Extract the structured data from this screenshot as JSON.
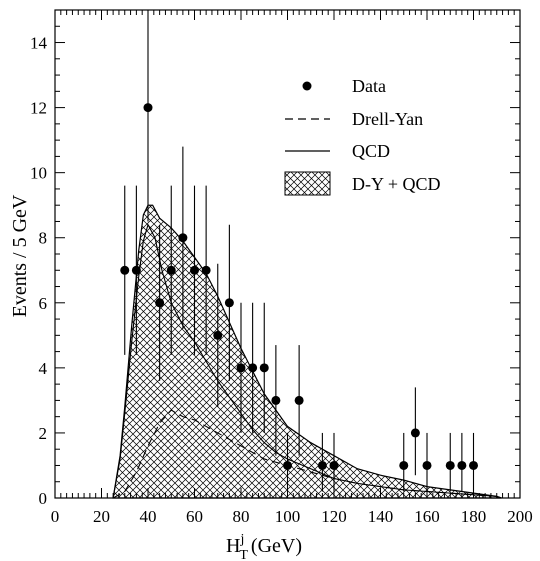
{
  "chart_data": {
    "type": "line",
    "xlabel": {
      "main": "H",
      "sup": "j",
      "sub": "T",
      "unit": "(GeV)"
    },
    "ylabel": "Events / 5 GeV",
    "xlim": [
      0,
      200
    ],
    "ylim": [
      0,
      15
    ],
    "x_ticks": [
      0,
      20,
      40,
      60,
      80,
      100,
      120,
      140,
      160,
      180,
      200
    ],
    "y_ticks": [
      0,
      2,
      4,
      6,
      8,
      10,
      12,
      14
    ],
    "x_minor_step": 2.5,
    "y_minor_step": 0.5,
    "legend": {
      "placement": "top-right",
      "entries": [
        "Data",
        "Drell-Yan",
        "QCD",
        "D-Y + QCD"
      ]
    },
    "series": [
      {
        "name": "Data",
        "kind": "points-with-errors",
        "points": [
          {
            "x": 30,
            "y": 7,
            "lo": 4.4,
            "hi": 9.6
          },
          {
            "x": 35,
            "y": 7,
            "lo": 4.4,
            "hi": 9.6
          },
          {
            "x": 40,
            "y": 12,
            "lo": 8.5,
            "hi": 15.5
          },
          {
            "x": 45,
            "y": 6,
            "lo": 3.6,
            "hi": 8.4
          },
          {
            "x": 50,
            "y": 7,
            "lo": 4.4,
            "hi": 9.6
          },
          {
            "x": 55,
            "y": 8,
            "lo": 5.2,
            "hi": 10.8
          },
          {
            "x": 60,
            "y": 7,
            "lo": 4.4,
            "hi": 9.6
          },
          {
            "x": 65,
            "y": 7,
            "lo": 4.4,
            "hi": 9.6
          },
          {
            "x": 70,
            "y": 5,
            "lo": 2.8,
            "hi": 7.2
          },
          {
            "x": 75,
            "y": 6,
            "lo": 3.6,
            "hi": 8.4
          },
          {
            "x": 80,
            "y": 4,
            "lo": 2.0,
            "hi": 6.0
          },
          {
            "x": 85,
            "y": 4,
            "lo": 2.0,
            "hi": 6.0
          },
          {
            "x": 90,
            "y": 4,
            "lo": 2.0,
            "hi": 6.0
          },
          {
            "x": 95,
            "y": 3,
            "lo": 1.3,
            "hi": 4.7
          },
          {
            "x": 100,
            "y": 1,
            "lo": 0.2,
            "hi": 2.0
          },
          {
            "x": 105,
            "y": 3,
            "lo": 1.3,
            "hi": 4.7
          },
          {
            "x": 115,
            "y": 1,
            "lo": 0.2,
            "hi": 2.0
          },
          {
            "x": 120,
            "y": 1,
            "lo": 0.2,
            "hi": 2.0
          },
          {
            "x": 150,
            "y": 1,
            "lo": 0.2,
            "hi": 2.0
          },
          {
            "x": 155,
            "y": 2,
            "lo": 0.7,
            "hi": 3.4
          },
          {
            "x": 160,
            "y": 1,
            "lo": 0.2,
            "hi": 2.0
          },
          {
            "x": 170,
            "y": 1,
            "lo": 0.2,
            "hi": 2.0
          },
          {
            "x": 175,
            "y": 1,
            "lo": 0.2,
            "hi": 2.0
          },
          {
            "x": 180,
            "y": 1,
            "lo": 0.2,
            "hi": 2.0
          }
        ]
      },
      {
        "name": "Drell-Yan",
        "kind": "dashed-line",
        "x": [
          25,
          30,
          35,
          40,
          45,
          50,
          55,
          60,
          65,
          70,
          80,
          90,
          100,
          110,
          120,
          130,
          140,
          150,
          160,
          170,
          180,
          190,
          192
        ],
        "y": [
          0,
          0.2,
          0.8,
          1.6,
          2.3,
          2.7,
          2.5,
          2.4,
          2.2,
          2.0,
          1.6,
          1.2,
          1.0,
          0.8,
          0.6,
          0.45,
          0.35,
          0.25,
          0.2,
          0.15,
          0.1,
          0.05,
          0
        ]
      },
      {
        "name": "QCD",
        "kind": "solid-line",
        "x": [
          25,
          28,
          30,
          33,
          36,
          38,
          40,
          43,
          46,
          50,
          55,
          60,
          65,
          70,
          75,
          80,
          85,
          90,
          95,
          100,
          110,
          120,
          130,
          140,
          150,
          160,
          170,
          180,
          190,
          192
        ],
        "y": [
          0,
          1.2,
          2.6,
          4.8,
          6.8,
          7.9,
          8.4,
          8.0,
          7.0,
          6.0,
          5.3,
          4.8,
          4.2,
          3.6,
          3.1,
          2.6,
          2.1,
          1.7,
          1.4,
          1.2,
          0.9,
          0.6,
          0.45,
          0.35,
          0.25,
          0.2,
          0.15,
          0.1,
          0.05,
          0
        ]
      },
      {
        "name": "D-Y + QCD",
        "kind": "hatched-area",
        "x": [
          25,
          28,
          30,
          33,
          36,
          38,
          40,
          42,
          45,
          50,
          55,
          60,
          65,
          70,
          75,
          80,
          85,
          90,
          95,
          100,
          110,
          120,
          130,
          140,
          150,
          160,
          170,
          180,
          190,
          192
        ],
        "y": [
          0,
          1.3,
          2.8,
          5.3,
          7.6,
          8.7,
          9.0,
          9.0,
          8.6,
          8.3,
          7.9,
          7.4,
          6.9,
          6.2,
          5.4,
          4.6,
          3.9,
          3.2,
          2.7,
          2.2,
          1.7,
          1.3,
          0.9,
          0.7,
          0.55,
          0.35,
          0.25,
          0.15,
          0.05,
          0
        ]
      }
    ]
  }
}
